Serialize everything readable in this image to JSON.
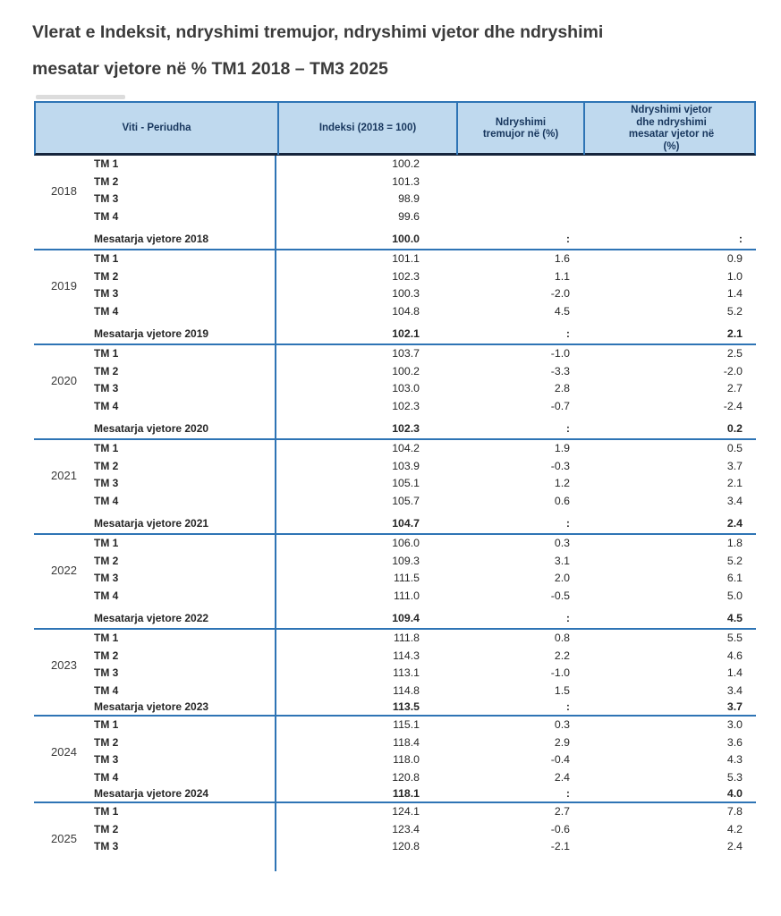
{
  "title": {
    "line1": "Vlerat e Indeksit, ndryshimi tremujor, ndryshimi vjetor dhe ndryshimi",
    "line2": "mesatar vjetore në %  TM1 2018 – TM3 2025"
  },
  "table": {
    "columns": [
      "Viti - Periudha",
      "Indeksi (2018 = 100)",
      "Ndryshimi\ntremujor në  (%)",
      "Ndryshimi vjetor\ndhe ndryshimi\nmesatar vjetor në\n(%)"
    ],
    "groups": [
      {
        "year": "2018",
        "rows": [
          [
            "TM 1",
            "100.2",
            "",
            ""
          ],
          [
            "TM 2",
            "101.3",
            "",
            ""
          ],
          [
            "TM 3",
            "98.9",
            "",
            ""
          ],
          [
            "TM 4",
            "99.6",
            "",
            ""
          ]
        ],
        "summary": [
          "Mesatarja vjetore 2018",
          "100.0",
          ":",
          ":"
        ],
        "summary_gap": true
      },
      {
        "year": "2019",
        "rows": [
          [
            "TM 1",
            "101.1",
            "1.6",
            "0.9"
          ],
          [
            "TM 2",
            "102.3",
            "1.1",
            "1.0"
          ],
          [
            "TM 3",
            "100.3",
            "-2.0",
            "1.4"
          ],
          [
            "TM 4",
            "104.8",
            "4.5",
            "5.2"
          ]
        ],
        "summary": [
          "Mesatarja vjetore 2019",
          "102.1",
          ":",
          "2.1"
        ],
        "summary_gap": true
      },
      {
        "year": "2020",
        "rows": [
          [
            "TM 1",
            "103.7",
            "-1.0",
            "2.5"
          ],
          [
            "TM 2",
            "100.2",
            "-3.3",
            "-2.0"
          ],
          [
            "TM 3",
            "103.0",
            "2.8",
            "2.7"
          ],
          [
            "TM 4",
            "102.3",
            "-0.7",
            "-2.4"
          ]
        ],
        "summary": [
          "Mesatarja vjetore 2020",
          "102.3",
          ":",
          "0.2"
        ],
        "summary_gap": true
      },
      {
        "year": "2021",
        "rows": [
          [
            "TM 1",
            "104.2",
            "1.9",
            "0.5"
          ],
          [
            "TM 2",
            "103.9",
            "-0.3",
            "3.7"
          ],
          [
            "TM 3",
            "105.1",
            "1.2",
            "2.1"
          ],
          [
            "TM 4",
            "105.7",
            "0.6",
            "3.4"
          ]
        ],
        "summary": [
          "Mesatarja vjetore 2021",
          "104.7",
          ":",
          "2.4"
        ],
        "summary_gap": true
      },
      {
        "year": "2022",
        "rows": [
          [
            "TM 1",
            "106.0",
            "0.3",
            "1.8"
          ],
          [
            "TM 2",
            "109.3",
            "3.1",
            "5.2"
          ],
          [
            "TM 3",
            "111.5",
            "2.0",
            "6.1"
          ],
          [
            "TM 4",
            "111.0",
            "-0.5",
            "5.0"
          ]
        ],
        "summary": [
          "Mesatarja vjetore 2022",
          "109.4",
          ":",
          "4.5"
        ],
        "summary_gap": true
      },
      {
        "year": "2023",
        "rows": [
          [
            "TM 1",
            "111.8",
            "0.8",
            "5.5"
          ],
          [
            "TM 2",
            "114.3",
            "2.2",
            "4.6"
          ],
          [
            "TM 3",
            "113.1",
            "-1.0",
            "1.4"
          ],
          [
            "TM 4",
            "114.8",
            "1.5",
            "3.4"
          ]
        ],
        "summary": [
          "Mesatarja vjetore 2023",
          "113.5",
          ":",
          "3.7"
        ],
        "summary_gap": false
      },
      {
        "year": "2024",
        "rows": [
          [
            "TM 1",
            "115.1",
            "0.3",
            "3.0"
          ],
          [
            "TM 2",
            "118.4",
            "2.9",
            "3.6"
          ],
          [
            "TM 3",
            "118.0",
            "-0.4",
            "4.3"
          ],
          [
            "TM 4",
            "120.8",
            "2.4",
            "5.3"
          ]
        ],
        "summary": [
          "Mesatarja vjetore 2024",
          "118.1",
          ":",
          "4.0"
        ],
        "summary_gap": false
      },
      {
        "year": "2025",
        "rows": [
          [
            "TM 1",
            "124.1",
            "2.7",
            "7.8"
          ],
          [
            "TM 2",
            "123.4",
            "-0.6",
            "4.2"
          ],
          [
            "TM 3",
            "120.8",
            "-2.1",
            "2.4"
          ]
        ],
        "summary": null,
        "summary_gap": false
      }
    ]
  },
  "colors": {
    "header_bg": "#BFD9EE",
    "table_blue": "#2E74B5",
    "header_rule": "#16253C",
    "header_text": "#17365D",
    "text_dark": "#262626"
  }
}
